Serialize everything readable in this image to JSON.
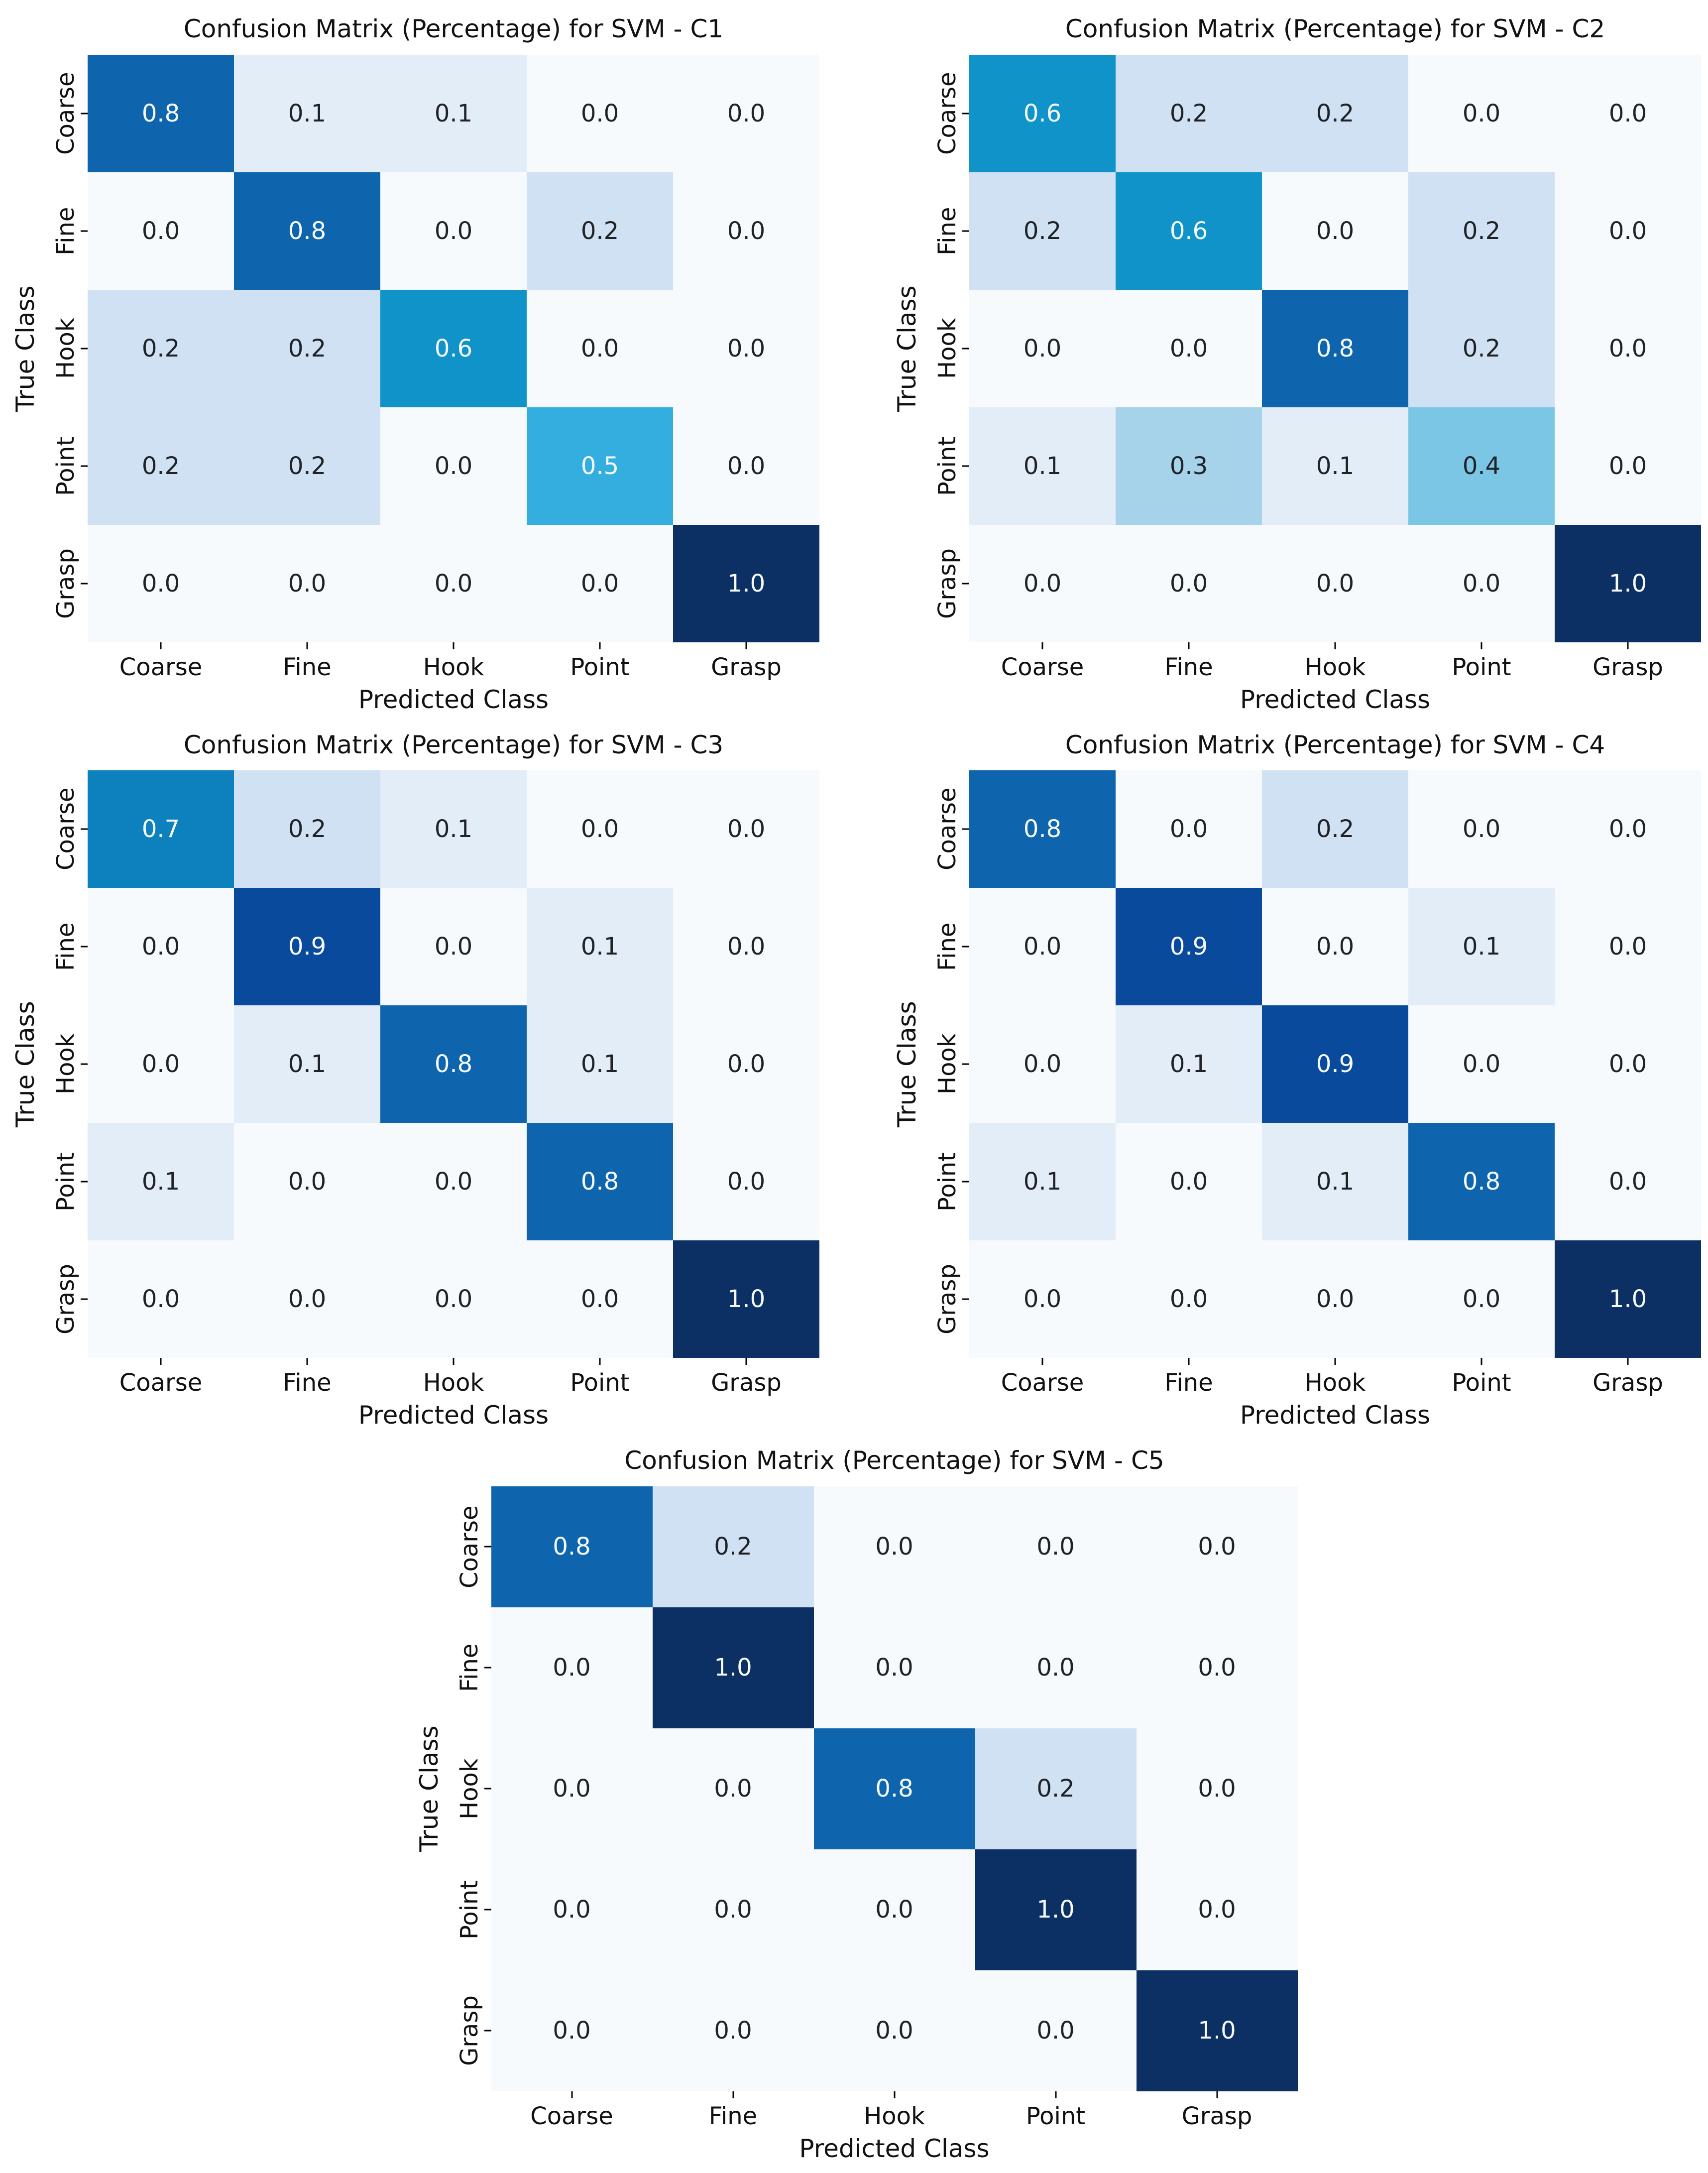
{
  "page": {
    "background": "#ffffff"
  },
  "classes": [
    "Coarse",
    "Fine",
    "Hook",
    "Point",
    "Grasp"
  ],
  "style": {
    "palette": [
      "#f7fafd",
      "#e3edf8",
      "#cfe1f2",
      "#a7d3ea",
      "#7cc6e5",
      "#34aede",
      "#0f93c9",
      "#0d80be",
      "#0e65ae",
      "#094a9c",
      "#0c3064"
    ],
    "dark_text": "#1f2227",
    "light_text": "#f7fafc",
    "light_text_min_value": 0.5,
    "tick_color": "#000000",
    "title_color": "#111111",
    "value_format_decimals": 1
  },
  "chart_data": [
    {
      "type": "heatmap",
      "title": "Confusion Matrix (Percentage) for SVM - C1",
      "xlabel": "Predicted Class",
      "ylabel": "True Class",
      "x_categories": [
        "Coarse",
        "Fine",
        "Hook",
        "Point",
        "Grasp"
      ],
      "y_categories": [
        "Coarse",
        "Fine",
        "Hook",
        "Point",
        "Grasp"
      ],
      "vmin": 0.0,
      "vmax": 1.0,
      "matrix": [
        [
          0.8,
          0.1,
          0.1,
          0.0,
          0.0
        ],
        [
          0.0,
          0.8,
          0.0,
          0.2,
          0.0
        ],
        [
          0.2,
          0.2,
          0.6,
          0.0,
          0.0
        ],
        [
          0.2,
          0.2,
          0.0,
          0.5,
          0.0
        ],
        [
          0.0,
          0.0,
          0.0,
          0.0,
          1.0
        ]
      ]
    },
    {
      "type": "heatmap",
      "title": "Confusion Matrix (Percentage) for SVM - C2",
      "xlabel": "Predicted Class",
      "ylabel": "True Class",
      "x_categories": [
        "Coarse",
        "Fine",
        "Hook",
        "Point",
        "Grasp"
      ],
      "y_categories": [
        "Coarse",
        "Fine",
        "Hook",
        "Point",
        "Grasp"
      ],
      "vmin": 0.0,
      "vmax": 1.0,
      "matrix": [
        [
          0.6,
          0.2,
          0.2,
          0.0,
          0.0
        ],
        [
          0.2,
          0.6,
          0.0,
          0.2,
          0.0
        ],
        [
          0.0,
          0.0,
          0.8,
          0.2,
          0.0
        ],
        [
          0.1,
          0.3,
          0.1,
          0.4,
          0.0
        ],
        [
          0.0,
          0.0,
          0.0,
          0.0,
          1.0
        ]
      ]
    },
    {
      "type": "heatmap",
      "title": "Confusion Matrix (Percentage) for SVM - C3",
      "xlabel": "Predicted Class",
      "ylabel": "True Class",
      "x_categories": [
        "Coarse",
        "Fine",
        "Hook",
        "Point",
        "Grasp"
      ],
      "y_categories": [
        "Coarse",
        "Fine",
        "Hook",
        "Point",
        "Grasp"
      ],
      "vmin": 0.0,
      "vmax": 1.0,
      "matrix": [
        [
          0.7,
          0.2,
          0.1,
          0.0,
          0.0
        ],
        [
          0.0,
          0.9,
          0.0,
          0.1,
          0.0
        ],
        [
          0.0,
          0.1,
          0.8,
          0.1,
          0.0
        ],
        [
          0.1,
          0.0,
          0.0,
          0.8,
          0.0
        ],
        [
          0.0,
          0.0,
          0.0,
          0.0,
          1.0
        ]
      ]
    },
    {
      "type": "heatmap",
      "title": "Confusion Matrix (Percentage) for SVM - C4",
      "xlabel": "Predicted Class",
      "ylabel": "True Class",
      "x_categories": [
        "Coarse",
        "Fine",
        "Hook",
        "Point",
        "Grasp"
      ],
      "y_categories": [
        "Coarse",
        "Fine",
        "Hook",
        "Point",
        "Grasp"
      ],
      "vmin": 0.0,
      "vmax": 1.0,
      "matrix": [
        [
          0.8,
          0.0,
          0.2,
          0.0,
          0.0
        ],
        [
          0.0,
          0.9,
          0.0,
          0.1,
          0.0
        ],
        [
          0.0,
          0.1,
          0.9,
          0.0,
          0.0
        ],
        [
          0.1,
          0.0,
          0.1,
          0.8,
          0.0
        ],
        [
          0.0,
          0.0,
          0.0,
          0.0,
          1.0
        ]
      ]
    },
    {
      "type": "heatmap",
      "title": "Confusion Matrix (Percentage) for SVM - C5",
      "xlabel": "Predicted Class",
      "ylabel": "True Class",
      "x_categories": [
        "Coarse",
        "Fine",
        "Hook",
        "Point",
        "Grasp"
      ],
      "y_categories": [
        "Coarse",
        "Fine",
        "Hook",
        "Point",
        "Grasp"
      ],
      "vmin": 0.0,
      "vmax": 1.0,
      "matrix": [
        [
          0.8,
          0.2,
          0.0,
          0.0,
          0.0
        ],
        [
          0.0,
          1.0,
          0.0,
          0.0,
          0.0
        ],
        [
          0.0,
          0.0,
          0.8,
          0.2,
          0.0
        ],
        [
          0.0,
          0.0,
          0.0,
          1.0,
          0.0
        ],
        [
          0.0,
          0.0,
          0.0,
          0.0,
          1.0
        ]
      ]
    }
  ]
}
